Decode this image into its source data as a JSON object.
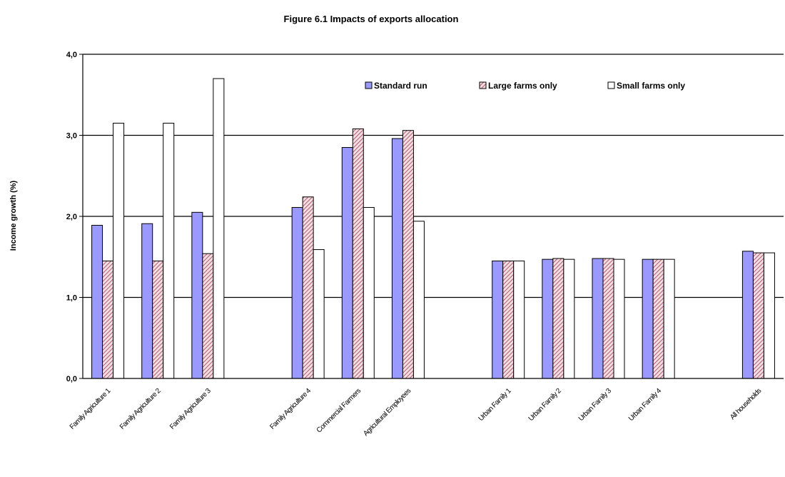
{
  "chart_data": {
    "type": "bar",
    "title": "Figure 6.1 Impacts of exports allocation",
    "xlabel": "",
    "ylabel": "Income growth (%)",
    "ylim": [
      0,
      4
    ],
    "yticks": [
      "0,0",
      "1,0",
      "2,0",
      "3,0",
      "4,0"
    ],
    "grid": true,
    "legend_position": "top-right",
    "categories": [
      "Family Agriculture 1",
      "Family Agriculture 2",
      "Family Agriculture 3",
      "",
      "Family Agriculture 4",
      "Commercial Farmers",
      "Agricultural Employees",
      "",
      "Urban Family 1",
      "Urban Family 2",
      "Urban Family 3",
      "Urban Family 4",
      "",
      "All households"
    ],
    "series": [
      {
        "name": "Standard run",
        "color": "#9999ff",
        "pattern": "solid",
        "values": [
          1.89,
          1.91,
          2.05,
          null,
          2.11,
          2.85,
          2.96,
          null,
          1.45,
          1.47,
          1.48,
          1.47,
          null,
          1.57
        ]
      },
      {
        "name": "Large farms only",
        "color": "#993366",
        "pattern": "diagonal-stripes",
        "values": [
          1.45,
          1.45,
          1.54,
          null,
          2.24,
          3.08,
          3.06,
          null,
          1.45,
          1.48,
          1.48,
          1.47,
          null,
          1.55
        ]
      },
      {
        "name": "Small farms only",
        "color": "#ffffff",
        "pattern": "outline",
        "values": [
          3.15,
          3.15,
          3.7,
          null,
          1.59,
          2.11,
          1.94,
          null,
          1.45,
          1.47,
          1.47,
          1.47,
          null,
          1.55
        ]
      }
    ]
  }
}
